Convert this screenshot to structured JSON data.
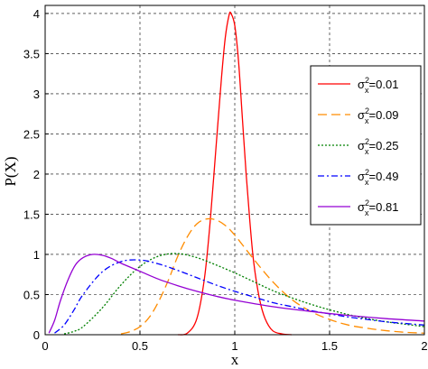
{
  "chart_data": {
    "type": "line",
    "xlabel": "x",
    "ylabel": "P(X)",
    "xlim": [
      0,
      2
    ],
    "ylim": [
      0,
      4.1
    ],
    "xticks": [
      "0",
      "0.5",
      "1",
      "1.5",
      "2"
    ],
    "yticks": [
      "0",
      "0.5",
      "1",
      "1.5",
      "2",
      "2.5",
      "3",
      "3.5",
      "4"
    ],
    "grid": true,
    "legend_position": "right",
    "legend_symbol": "σ",
    "legend_superscript": "2",
    "legend_subscript": "x",
    "series": [
      {
        "name": "=0.01",
        "color": "#ff0000",
        "dash": "solid",
        "x": [
          0.7,
          0.75,
          0.8,
          0.84,
          0.87,
          0.9,
          0.93,
          0.95,
          0.97,
          0.98,
          1.0,
          1.02,
          1.04,
          1.06,
          1.08,
          1.1,
          1.13,
          1.16,
          1.2,
          1.25,
          1.3
        ],
        "y": [
          0,
          0.02,
          0.2,
          0.7,
          1.4,
          2.3,
          3.2,
          3.7,
          3.98,
          4.0,
          3.85,
          3.4,
          2.7,
          2.0,
          1.4,
          0.9,
          0.45,
          0.2,
          0.05,
          0.01,
          0
        ]
      },
      {
        "name": "=0.09",
        "color": "#ff8c00",
        "dash": "long-dash",
        "x": [
          0.4,
          0.45,
          0.5,
          0.55,
          0.6,
          0.65,
          0.7,
          0.75,
          0.8,
          0.85,
          0.9,
          0.95,
          1.0,
          1.1,
          1.2,
          1.3,
          1.4,
          1.5,
          1.6,
          1.7,
          1.8,
          1.9,
          2.0
        ],
        "y": [
          0.01,
          0.04,
          0.1,
          0.22,
          0.42,
          0.68,
          0.98,
          1.22,
          1.38,
          1.44,
          1.43,
          1.36,
          1.24,
          0.94,
          0.66,
          0.44,
          0.29,
          0.19,
          0.12,
          0.08,
          0.05,
          0.03,
          0.02
        ]
      },
      {
        "name": "=0.25",
        "color": "#008000",
        "dash": "dotted",
        "x": [
          0.1,
          0.15,
          0.2,
          0.3,
          0.4,
          0.5,
          0.6,
          0.7,
          0.8,
          0.9,
          1.0,
          1.1,
          1.2,
          1.3,
          1.4,
          1.5,
          1.6,
          1.7,
          1.8,
          1.9,
          2.0
        ],
        "y": [
          0.01,
          0.04,
          0.1,
          0.33,
          0.62,
          0.85,
          0.98,
          1.01,
          0.96,
          0.87,
          0.77,
          0.66,
          0.55,
          0.46,
          0.38,
          0.31,
          0.25,
          0.2,
          0.16,
          0.13,
          0.1
        ]
      },
      {
        "name": "=0.49",
        "color": "#0000ff",
        "dash": "dash-dot",
        "x": [
          0.05,
          0.1,
          0.15,
          0.2,
          0.3,
          0.4,
          0.5,
          0.6,
          0.7,
          0.8,
          0.9,
          1.0,
          1.1,
          1.2,
          1.3,
          1.4,
          1.5,
          1.6,
          1.7,
          1.8,
          1.9,
          2.0
        ],
        "y": [
          0.02,
          0.12,
          0.3,
          0.5,
          0.78,
          0.91,
          0.93,
          0.88,
          0.8,
          0.71,
          0.62,
          0.54,
          0.47,
          0.4,
          0.35,
          0.3,
          0.26,
          0.22,
          0.19,
          0.16,
          0.14,
          0.12
        ]
      },
      {
        "name": "=0.81",
        "color": "#9400d3",
        "dash": "solid",
        "x": [
          0.02,
          0.05,
          0.08,
          0.12,
          0.16,
          0.2,
          0.25,
          0.3,
          0.35,
          0.4,
          0.5,
          0.6,
          0.7,
          0.8,
          0.9,
          1.0,
          1.2,
          1.4,
          1.6,
          1.8,
          2.0
        ],
        "y": [
          0.02,
          0.18,
          0.42,
          0.68,
          0.87,
          0.96,
          1.0,
          0.99,
          0.95,
          0.89,
          0.79,
          0.69,
          0.61,
          0.54,
          0.48,
          0.43,
          0.35,
          0.29,
          0.24,
          0.2,
          0.17
        ]
      }
    ]
  }
}
